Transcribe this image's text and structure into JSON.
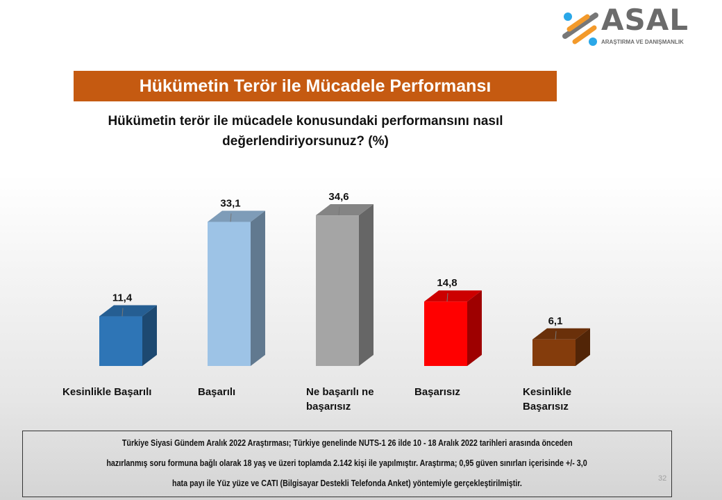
{
  "logo": {
    "name": "ASAL",
    "tagline": "ARAŞTIRMA VE DANIŞMANLIK"
  },
  "header": {
    "title": "Hükümetin Terör ile Mücadele Performansı"
  },
  "chart_data": {
    "type": "bar",
    "title": "Hükümetin terör ile mücadele konusundaki performansını nasıl değerlendiriyorsunuz? (%)",
    "categories": [
      "Kesinlikle Başarılı",
      "Başarılı",
      "Ne başarılı ne başarısız",
      "Başarısız",
      "Kesinlikle Başarısız"
    ],
    "values": [
      11.4,
      33.1,
      34.6,
      14.8,
      6.1
    ],
    "data_labels": [
      "11,4",
      "33,1",
      "34,6",
      "14,8",
      "6,1"
    ],
    "colors": [
      "#2e75b6",
      "#9dc3e6",
      "#a5a5a5",
      "#ff0000",
      "#843c0c"
    ],
    "style": "3d-column",
    "ylim": [
      0,
      35
    ],
    "grid": false,
    "legend": "none"
  },
  "footer": {
    "lines": [
      "Türkiye Siyasi Gündem Aralık 2022 Araştırması; Türkiye genelinde NUTS-1 26 ilde 10 - 18 Aralık 2022 tarihleri arasında önceden",
      "hazırlanmış soru formuna bağlı olarak 18 yaş ve üzeri toplamda 2.142 kişi ile yapılmıştır. Araştırma; 0,95 güven sınırları içerisinde +/- 3,0",
      "hata payı ile Yüz yüze ve CATI (Bilgisayar Destekli Telefonda Anket) yöntemiyle gerçekleştirilmiştir."
    ],
    "page_number": "32"
  }
}
